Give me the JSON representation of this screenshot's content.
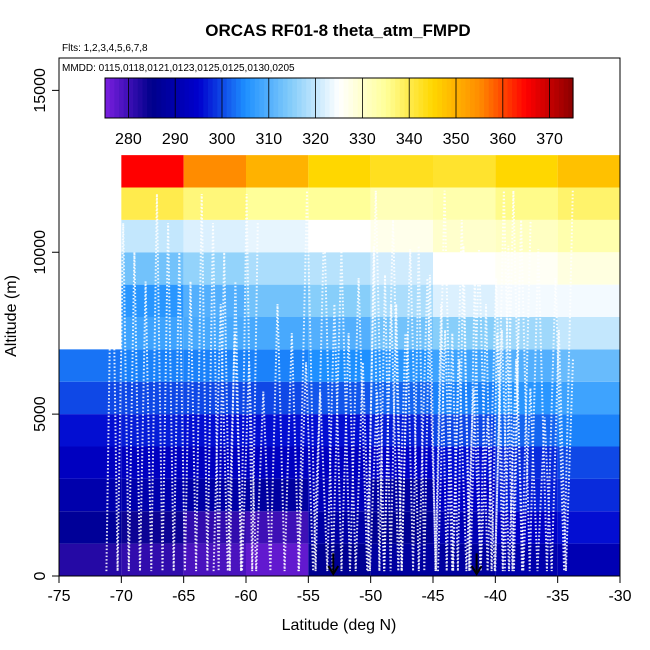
{
  "chart_data": {
    "type": "heatmap",
    "title": "ORCAS RF01-8 theta_atm_FMPD",
    "flights_note": "Flts: 1,2,3,4,5,6,7,8",
    "dates_note": "MMDD: 0115,0118,0121,0123,0125,0125,0130,0205",
    "xlabel": "Latitude (deg N)",
    "ylabel": "Altitude (m)",
    "xlim": [
      -75,
      -30
    ],
    "ylim": [
      0,
      16000
    ],
    "x_ticks": [
      -75,
      -70,
      -65,
      -60,
      -55,
      -50,
      -45,
      -40,
      -35,
      -30
    ],
    "x_tick_labels": [
      "-75",
      "-70",
      "-65",
      "-60",
      "-55",
      "-50",
      "-45",
      "-40",
      "-35",
      "-30"
    ],
    "y_ticks": [
      0,
      5000,
      10000,
      15000
    ],
    "y_tick_labels": [
      "0",
      "5000",
      "10000",
      "15000"
    ],
    "colorbar": {
      "min": 275,
      "max": 375,
      "ticks": [
        280,
        290,
        300,
        310,
        320,
        330,
        340,
        350,
        360,
        370
      ],
      "tick_labels": [
        "280",
        "290",
        "300",
        "310",
        "320",
        "330",
        "340",
        "350",
        "360",
        "370"
      ],
      "colors": [
        "#7b1fe0",
        "#00008b",
        "#0000cd",
        "#1e90ff",
        "#87cefa",
        "#ffffff",
        "#ffff99",
        "#ffd700",
        "#ff8c00",
        "#ff0000",
        "#8b0000"
      ]
    },
    "lat_bins": [
      -75,
      -70,
      -65,
      -60,
      -55,
      -50,
      -45,
      -40,
      -35,
      -30
    ],
    "alt_bin_size": 1000,
    "cells_theta_by_alt_bin": [
      [
        282,
        281,
        279,
        277,
        286,
        288,
        288,
        290,
        291
      ],
      [
        287,
        284,
        281,
        280,
        289,
        286,
        291,
        294,
        296
      ],
      [
        290,
        290,
        289,
        288,
        292,
        288,
        294,
        297,
        298
      ],
      [
        293,
        293,
        293,
        293,
        293,
        294,
        296,
        298,
        300
      ],
      [
        296,
        297,
        296,
        296,
        296,
        297,
        300,
        302,
        304
      ],
      [
        300,
        300,
        300,
        300,
        301,
        302,
        304,
        306,
        308
      ],
      [
        303,
        304,
        304,
        304,
        305,
        306,
        308,
        310,
        312
      ],
      [
        null,
        308,
        309,
        309,
        310,
        313,
        315,
        317,
        320
      ],
      [
        null,
        306,
        310,
        313,
        315,
        318,
        322,
        324,
        324
      ],
      [
        null,
        313,
        316,
        318,
        319,
        321,
        325,
        326,
        328
      ],
      [
        null,
        320,
        322,
        323,
        325,
        327,
        330,
        331,
        333
      ],
      [
        null,
        340,
        337,
        335,
        335,
        332,
        333,
        336,
        338
      ],
      [
        null,
        365,
        355,
        350,
        345,
        343,
        342,
        345,
        348
      ]
    ],
    "arrow_markers": [
      {
        "lat": -53,
        "alt": 700
      },
      {
        "lat": -41.5,
        "alt": 700
      }
    ]
  }
}
